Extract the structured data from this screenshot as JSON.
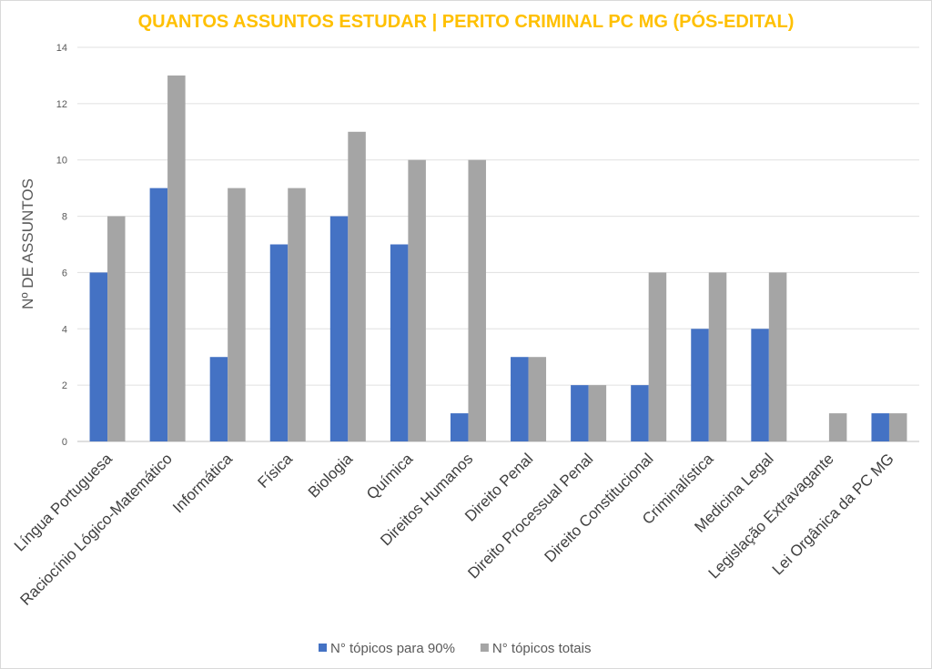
{
  "chart_data": {
    "type": "bar",
    "title": "QUANTOS ASSUNTOS ESTUDAR | PERITO CRIMINAL PC MG (PÓS-EDITAL)",
    "xlabel": "",
    "ylabel": "Nº DE ASSUNTOS",
    "ylim": [
      0,
      14
    ],
    "yticks": [
      0,
      2,
      4,
      6,
      8,
      10,
      12,
      14
    ],
    "grid": true,
    "legend_position": "bottom",
    "categories": [
      "Língua Portuguesa",
      "Raciocínio Lógico-Matemático",
      "Informática",
      "Física",
      "Biologia",
      "Química",
      "Direitos Humanos",
      "Direito Penal",
      "Direito Processual Penal",
      "Direito Constitucional",
      "Criminalística",
      "Medicina Legal",
      "Legislação Extravagante",
      "Lei Orgânica da PC MG"
    ],
    "series": [
      {
        "name": "N° tópicos para 90%",
        "color": "#4472C4",
        "values": [
          6,
          9,
          3,
          7,
          8,
          7,
          1,
          3,
          2,
          2,
          4,
          4,
          0,
          1
        ]
      },
      {
        "name": "N° tópicos totais",
        "color": "#A5A5A5",
        "values": [
          8,
          13,
          9,
          9,
          11,
          10,
          10,
          3,
          2,
          6,
          6,
          6,
          1,
          1
        ]
      }
    ],
    "title_color": "#FFC000"
  }
}
